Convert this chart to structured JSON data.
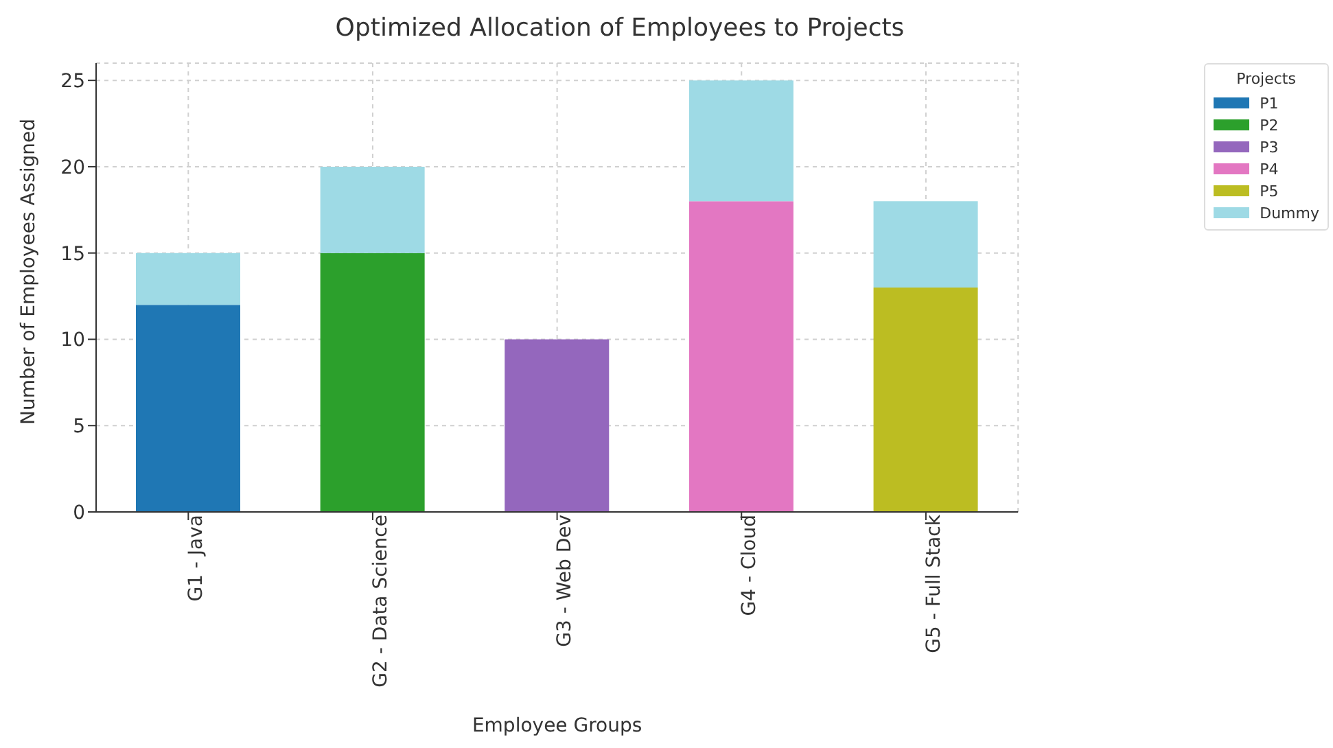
{
  "chart_data": {
    "type": "bar",
    "title": "Optimized Allocation of Employees to Projects",
    "xlabel": "Employee Groups",
    "ylabel": "Number of Employees Assigned",
    "legend_title": "Projects",
    "categories": [
      "G1 - Java",
      "G2 - Data Science",
      "G3 - Web Dev",
      "G4 - Cloud",
      "G5 - Full Stack"
    ],
    "series": [
      {
        "name": "P1",
        "color": "#1f77b4",
        "values": [
          12,
          null,
          null,
          null,
          null
        ]
      },
      {
        "name": "P2",
        "color": "#2ca02c",
        "values": [
          null,
          15,
          null,
          null,
          null
        ]
      },
      {
        "name": "P3",
        "color": "#9467bd",
        "values": [
          null,
          null,
          10,
          null,
          null
        ]
      },
      {
        "name": "P4",
        "color": "#e377c2",
        "values": [
          null,
          null,
          null,
          18,
          null
        ]
      },
      {
        "name": "P5",
        "color": "#bcbd22",
        "values": [
          null,
          null,
          null,
          null,
          13
        ]
      },
      {
        "name": "Dummy",
        "color": "#9edae5",
        "values": [
          3,
          5,
          0,
          7,
          5
        ]
      }
    ],
    "stacked": true,
    "ylim": [
      0,
      26
    ],
    "yticks": [
      0,
      5,
      10,
      15,
      20,
      25
    ],
    "grid": true,
    "legend": "top right"
  }
}
